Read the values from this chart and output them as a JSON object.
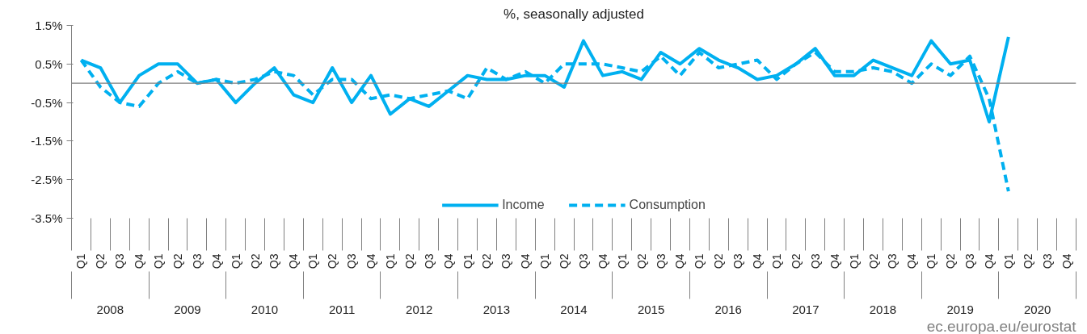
{
  "chart_data": {
    "type": "line",
    "title": "%, seasonally adjusted",
    "categories": [
      "Q1",
      "Q2",
      "Q3",
      "Q4",
      "Q1",
      "Q2",
      "Q3",
      "Q4",
      "Q1",
      "Q2",
      "Q3",
      "Q4",
      "Q1",
      "Q2",
      "Q3",
      "Q4",
      "Q1",
      "Q2",
      "Q3",
      "Q4",
      "Q1",
      "Q2",
      "Q3",
      "Q4",
      "Q1",
      "Q2",
      "Q3",
      "Q4",
      "Q1",
      "Q2",
      "Q3",
      "Q4",
      "Q1",
      "Q2",
      "Q3",
      "Q4",
      "Q1",
      "Q2",
      "Q3",
      "Q4",
      "Q1",
      "Q2",
      "Q3",
      "Q4",
      "Q1",
      "Q2",
      "Q3",
      "Q4",
      "Q1",
      "Q2",
      "Q3",
      "Q4"
    ],
    "series": [
      {
        "name": "Income",
        "color": "#00b0f0",
        "line_style": "solid",
        "values": [
          0.6,
          0.4,
          -0.5,
          0.2,
          0.5,
          0.5,
          0.0,
          0.1,
          -0.5,
          0.0,
          0.4,
          -0.3,
          -0.5,
          0.4,
          -0.5,
          0.2,
          -0.8,
          -0.4,
          -0.6,
          -0.2,
          0.2,
          0.1,
          0.1,
          0.2,
          0.2,
          -0.1,
          1.1,
          0.2,
          0.3,
          0.1,
          0.8,
          0.5,
          0.9,
          0.6,
          0.4,
          0.1,
          0.2,
          0.5,
          0.9,
          0.2,
          0.2,
          0.6,
          0.4,
          0.2,
          1.1,
          0.5,
          0.6,
          -1.0,
          1.2,
          null,
          null,
          null
        ]
      },
      {
        "name": "Consumption",
        "color": "#00b0f0",
        "line_style": "dashed",
        "values": [
          0.6,
          -0.1,
          -0.5,
          -0.6,
          0.0,
          0.3,
          0.0,
          0.1,
          0.0,
          0.1,
          0.3,
          0.2,
          -0.3,
          0.1,
          0.1,
          -0.4,
          -0.3,
          -0.4,
          -0.3,
          -0.2,
          -0.4,
          0.4,
          0.1,
          0.3,
          0.0,
          0.5,
          0.5,
          0.5,
          0.4,
          0.3,
          0.7,
          0.2,
          0.8,
          0.4,
          0.5,
          0.6,
          0.1,
          0.5,
          0.8,
          0.3,
          0.3,
          0.4,
          0.3,
          0.0,
          0.5,
          0.2,
          0.7,
          -0.4,
          -2.8,
          null,
          null,
          null
        ]
      }
    ],
    "ylim": [
      -3.5,
      1.5
    ],
    "yticks": [
      {
        "value": 1.5,
        "label": "1.5%"
      },
      {
        "value": 0.5,
        "label": "0.5%"
      },
      {
        "value": -0.5,
        "label": "-0.5%"
      },
      {
        "value": -1.5,
        "label": "-1.5%"
      },
      {
        "value": -2.5,
        "label": "-2.5%"
      },
      {
        "value": -3.5,
        "label": "-3.5%"
      }
    ],
    "ref_lines": [
      {
        "axis": "y",
        "value": 0,
        "color": "#808080"
      }
    ],
    "annotations": [
      "2008",
      "2009",
      "2010",
      "2011",
      "2012",
      "2013",
      "2014",
      "2015",
      "2016",
      "2017",
      "2018",
      "2019",
      "2020",
      "ec.europa.eu/eurostat"
    ],
    "grid": false,
    "legend": "bottom",
    "marker": "none"
  }
}
